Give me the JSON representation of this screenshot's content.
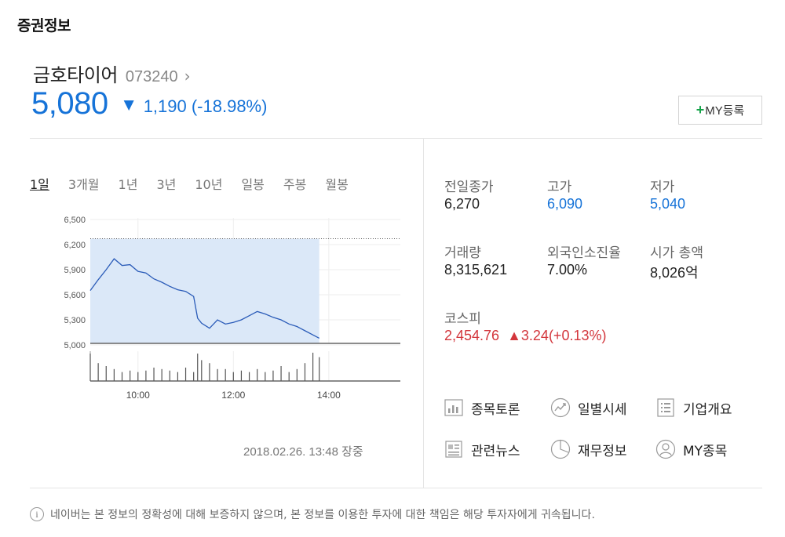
{
  "section_title": "증권정보",
  "stock": {
    "name": "금호타이어",
    "code": "073240",
    "arrow": "›",
    "price": "5,080",
    "direction_symbol": "▼",
    "change": "1,190 (-18.98%)"
  },
  "my_button": {
    "plus": "+",
    "label": "MY등록"
  },
  "tabs": [
    "1일",
    "3개월",
    "1년",
    "3년",
    "10년",
    "일봉",
    "주봉",
    "월봉"
  ],
  "active_tab": "1일",
  "chart_data": {
    "type": "area",
    "y_ticks": [
      "6,500",
      "6,200",
      "5,900",
      "5,600",
      "5,300",
      "5,000"
    ],
    "x_ticks": [
      "10:00",
      "12:00",
      "14:00"
    ],
    "ylim": [
      5000,
      6500
    ],
    "prev_close": 6270,
    "x": [
      "09:00",
      "09:10",
      "09:20",
      "09:30",
      "09:40",
      "09:50",
      "10:00",
      "10:10",
      "10:20",
      "10:30",
      "10:40",
      "10:50",
      "11:00",
      "11:10",
      "11:15",
      "11:20",
      "11:30",
      "11:40",
      "11:50",
      "12:00",
      "12:10",
      "12:20",
      "12:30",
      "12:40",
      "12:50",
      "13:00",
      "13:10",
      "13:20",
      "13:30",
      "13:40",
      "13:48"
    ],
    "price": [
      5650,
      5780,
      5900,
      6030,
      5950,
      5960,
      5880,
      5860,
      5790,
      5750,
      5700,
      5660,
      5640,
      5580,
      5320,
      5260,
      5200,
      5300,
      5250,
      5270,
      5300,
      5350,
      5400,
      5370,
      5330,
      5300,
      5250,
      5220,
      5170,
      5120,
      5080
    ],
    "volume": [
      0.92,
      0.6,
      0.5,
      0.4,
      0.3,
      0.35,
      0.3,
      0.35,
      0.45,
      0.4,
      0.35,
      0.3,
      0.45,
      0.3,
      0.92,
      0.7,
      0.6,
      0.4,
      0.4,
      0.3,
      0.35,
      0.3,
      0.4,
      0.3,
      0.35,
      0.5,
      0.3,
      0.4,
      0.6,
      0.95,
      0.8
    ]
  },
  "timestamp": "2018.02.26. 13:48 장중",
  "stats": [
    {
      "label": "전일종가",
      "value": "6,270",
      "color": "default"
    },
    {
      "label": "고가",
      "value": "6,090",
      "color": "blue"
    },
    {
      "label": "저가",
      "value": "5,040",
      "color": "blue"
    },
    {
      "label": "거래량",
      "value": "8,315,621",
      "color": "default"
    },
    {
      "label": "외국인소진율",
      "value": "7.00%",
      "color": "default"
    },
    {
      "label": "시가 총액",
      "value": "8,026억",
      "color": "default"
    }
  ],
  "index": {
    "label": "코스피",
    "value": "2,454.76",
    "change": "▲3.24(+0.13%)"
  },
  "links": [
    {
      "label": "종목토론",
      "icon": "bar-chart-icon"
    },
    {
      "label": "일별시세",
      "icon": "trend-icon"
    },
    {
      "label": "기업개요",
      "icon": "list-icon"
    },
    {
      "label": "관련뉴스",
      "icon": "news-icon"
    },
    {
      "label": "재무정보",
      "icon": "pie-icon"
    },
    {
      "label": "MY종목",
      "icon": "person-icon"
    }
  ],
  "disclaimer": {
    "icon": "info-icon",
    "text": "네이버는 본 정보의 정확성에 대해 보증하지 않으며, 본 정보를 이용한 투자에 대한 책임은 해당 투자자에게 귀속됩니다."
  },
  "colors": {
    "down": "#1673d8",
    "up": "#d3363c",
    "chart_fill": "#dbe8f8",
    "chart_line": "#2a5bb8"
  }
}
